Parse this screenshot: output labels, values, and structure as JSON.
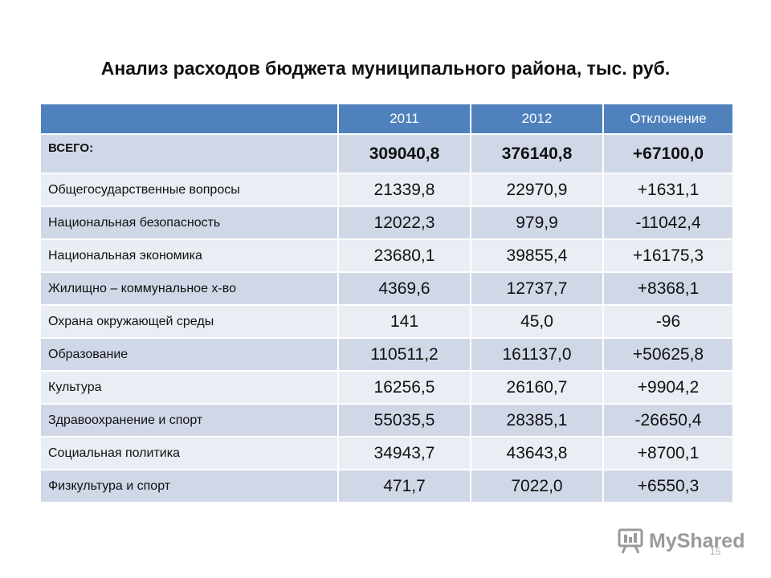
{
  "title": "Анализ расходов бюджета муниципального района, тыс. руб.",
  "table": {
    "headers": [
      "",
      "2011",
      "2012",
      "Отклонение"
    ],
    "rows": [
      {
        "label": "ВСЕГО:",
        "y2011": "309040,8",
        "y2012": "376140,8",
        "deviation": "+67100,0"
      },
      {
        "label": "Общегосударственные вопросы",
        "y2011": "21339,8",
        "y2012": "22970,9",
        "deviation": "+1631,1"
      },
      {
        "label": "Национальная безопасность",
        "y2011": "12022,3",
        "y2012": "979,9",
        "deviation": "-11042,4"
      },
      {
        "label": "Национальная экономика",
        "y2011": "23680,1",
        "y2012": "39855,4",
        "deviation": "+16175,3"
      },
      {
        "label": "Жилищно – коммунальное х-во",
        "y2011": "4369,6",
        "y2012": "12737,7",
        "deviation": "+8368,1"
      },
      {
        "label": "Охрана окружающей среды",
        "y2011": "141",
        "y2012": "45,0",
        "deviation": "-96"
      },
      {
        "label": "Образование",
        "y2011": "110511,2",
        "y2012": "161137,0",
        "deviation": "+50625,8"
      },
      {
        "label": "Культура",
        "y2011": "16256,5",
        "y2012": "26160,7",
        "deviation": "+9904,2"
      },
      {
        "label": "Здравоохранение и спорт",
        "y2011": "55035,5",
        "y2012": "28385,1",
        "deviation": "-26650,4"
      },
      {
        "label": "Социальная политика",
        "y2011": "34943,7",
        "y2012": "43643,8",
        "deviation": "+8700,1"
      },
      {
        "label": "Физкультура и спорт",
        "y2011": "471,7",
        "y2012": "7022,0",
        "deviation": "+6550,3"
      }
    ]
  },
  "watermark": {
    "text": "MyShared",
    "icon": "presentation-board-icon"
  },
  "page_number": "15",
  "colors": {
    "header_bg": "#4f81bd",
    "row_odd": "#d0d8e8",
    "row_even": "#e9edf4"
  }
}
